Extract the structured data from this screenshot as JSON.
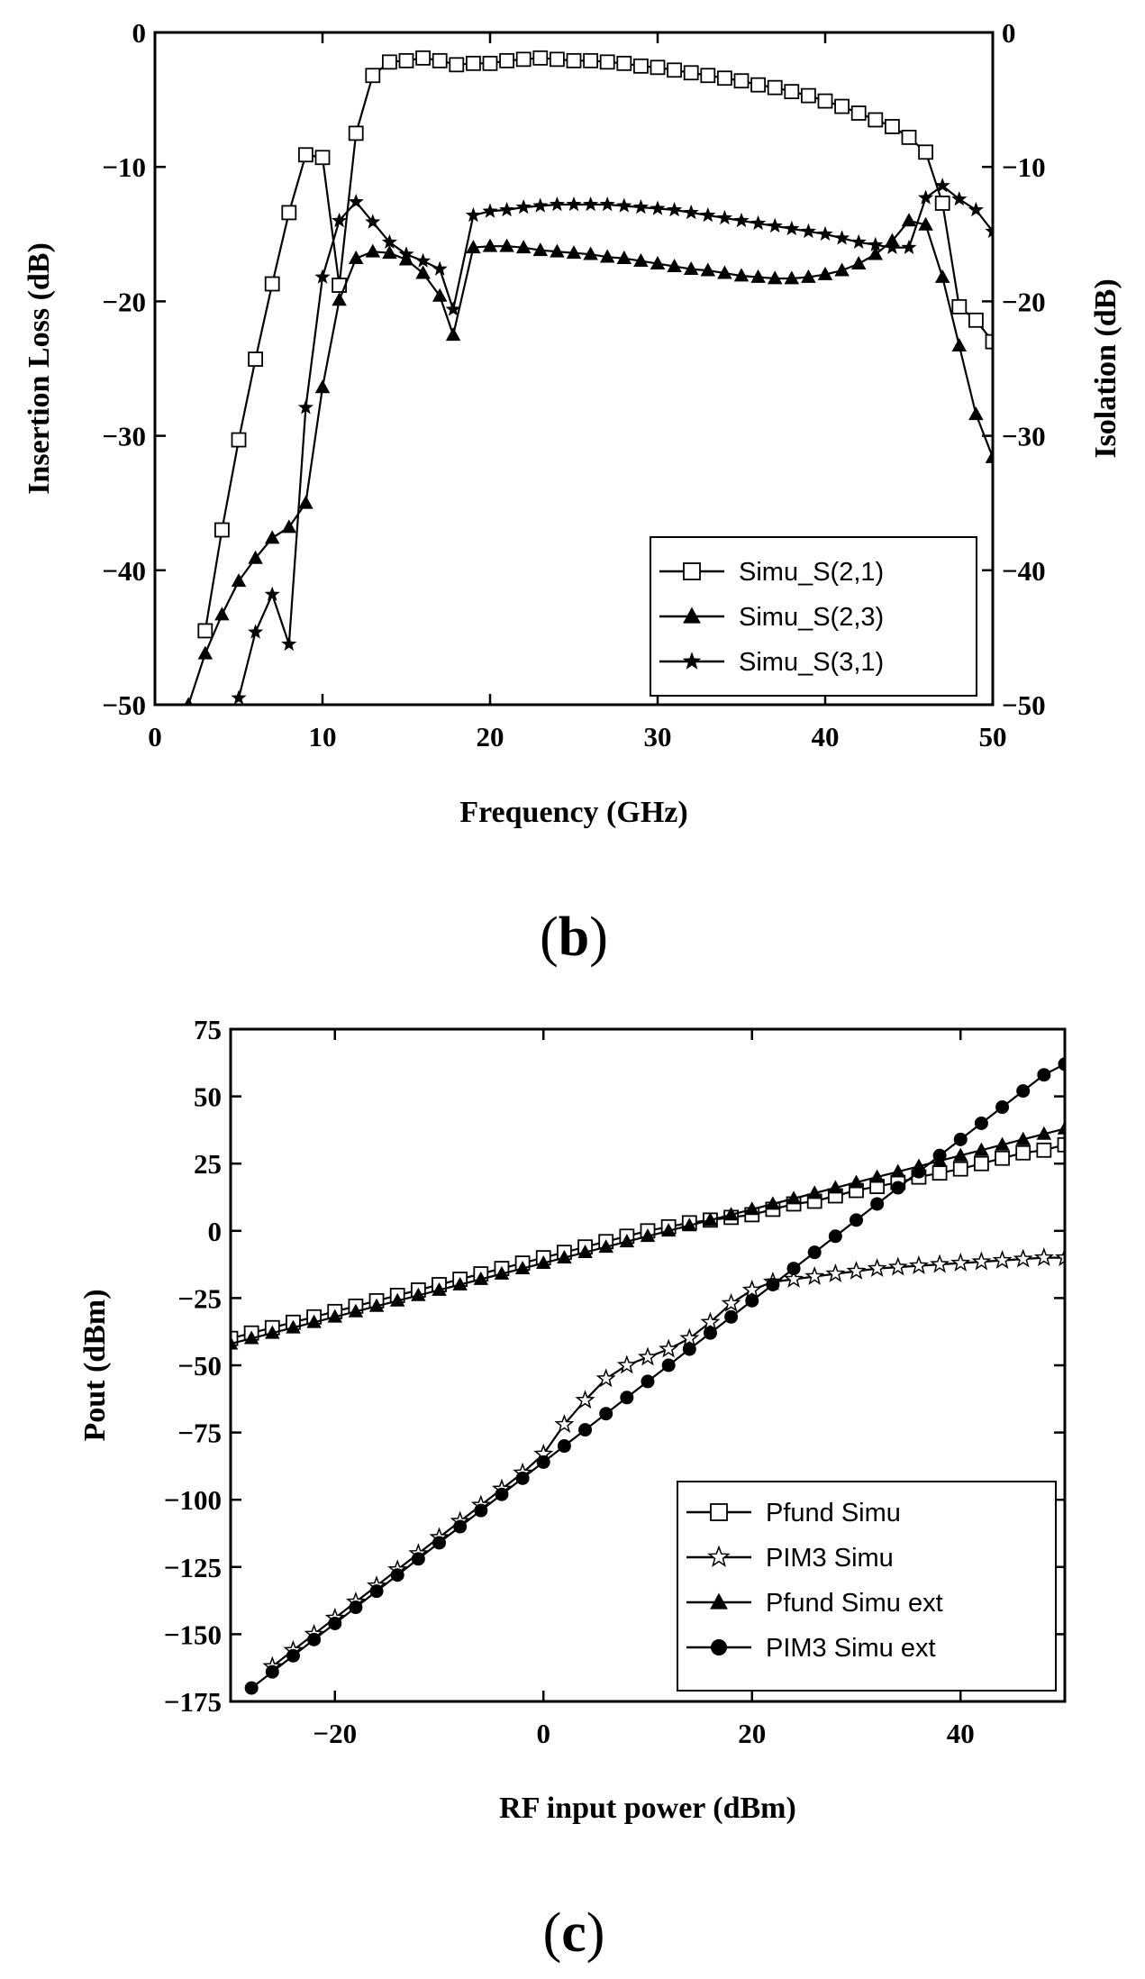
{
  "chart_data": [
    {
      "id": "b",
      "panel_label": {
        "open": "(",
        "letter": "b",
        "close": ")"
      },
      "type": "line",
      "xlabel": "Frequency (GHz)",
      "ylabel": "Insertion Loss (dB)",
      "y2label": "Isolation (dB)",
      "xlim": [
        0,
        50
      ],
      "ylim": [
        -50,
        0
      ],
      "xticks": [
        0,
        10,
        20,
        30,
        40,
        50
      ],
      "yticks": [
        0,
        -10,
        -20,
        -30,
        -40,
        -50
      ],
      "ytick_labels": [
        "0",
        "−10",
        "−20",
        "−30",
        "−40",
        "−50"
      ],
      "y2ticks": [
        0,
        -10,
        -20,
        -30,
        -40,
        -50
      ],
      "y2tick_labels": [
        "0",
        "−10",
        "−20",
        "−30",
        "−40",
        "−50"
      ],
      "legend_position": "bottom-right",
      "series": [
        {
          "name": "Simu_S(2,1)",
          "marker": "square-open",
          "x": [
            3,
            4,
            5,
            6,
            7,
            8,
            9,
            10,
            11,
            12,
            13,
            14,
            15,
            16,
            17,
            18,
            19,
            20,
            21,
            22,
            23,
            24,
            25,
            26,
            27,
            28,
            29,
            30,
            31,
            32,
            33,
            34,
            35,
            36,
            37,
            38,
            39,
            40,
            41,
            42,
            43,
            44,
            45,
            46,
            47,
            48,
            49,
            50
          ],
          "y": [
            -44.5,
            -37,
            -30.3,
            -24.3,
            -18.7,
            -13.4,
            -9.1,
            -9.3,
            -18.8,
            -7.5,
            -3.2,
            -2.2,
            -2.1,
            -1.9,
            -2.1,
            -2.4,
            -2.3,
            -2.3,
            -2.1,
            -2.0,
            -1.9,
            -2.0,
            -2.1,
            -2.1,
            -2.2,
            -2.3,
            -2.5,
            -2.6,
            -2.8,
            -3.0,
            -3.2,
            -3.4,
            -3.6,
            -3.9,
            -4.1,
            -4.4,
            -4.7,
            -5.1,
            -5.5,
            -6.0,
            -6.5,
            -7.0,
            -7.8,
            -8.9,
            -12.7,
            -20.4,
            -21.4,
            -23.0
          ]
        },
        {
          "name": "Simu_S(2,3)",
          "marker": "triangle-filled",
          "x": [
            2,
            3,
            4,
            5,
            6,
            7,
            8,
            9,
            10,
            11,
            12,
            13,
            14,
            15,
            16,
            17,
            17.8,
            19,
            20,
            21,
            22,
            23,
            24,
            25,
            26,
            27,
            28,
            29,
            30,
            31,
            32,
            33,
            34,
            35,
            36,
            37,
            38,
            39,
            40,
            41,
            42,
            43,
            44,
            45,
            46,
            47,
            48,
            49,
            50
          ],
          "y": [
            -50,
            -46.2,
            -43.3,
            -40.8,
            -39.1,
            -37.6,
            -36.8,
            -35.0,
            -26.4,
            -19.9,
            -16.8,
            -16.3,
            -16.4,
            -16.9,
            -17.9,
            -19.6,
            -22.5,
            -16.0,
            -15.9,
            -15.9,
            -16.0,
            -16.2,
            -16.3,
            -16.4,
            -16.5,
            -16.7,
            -16.8,
            -17.0,
            -17.2,
            -17.4,
            -17.6,
            -17.7,
            -17.9,
            -18.1,
            -18.2,
            -18.3,
            -18.3,
            -18.2,
            -18.0,
            -17.7,
            -17.2,
            -16.5,
            -15.5,
            -14.0,
            -14.3,
            -18.2,
            -23.3,
            -28.4,
            -31.6
          ]
        },
        {
          "name": "Simu_S(3,1)",
          "marker": "star-filled",
          "x": [
            5,
            6,
            7,
            8,
            9,
            10,
            11,
            12,
            13,
            14,
            15,
            16,
            17,
            17.8,
            19,
            20,
            21,
            22,
            23,
            24,
            25,
            26,
            27,
            28,
            29,
            30,
            31,
            32,
            33,
            34,
            35,
            36,
            37,
            38,
            39,
            40,
            41,
            42,
            43,
            44,
            45,
            46,
            47,
            48,
            49,
            50
          ],
          "y": [
            -49.5,
            -44.6,
            -41.8,
            -45.5,
            -27.9,
            -18.2,
            -14.0,
            -12.6,
            -14.1,
            -15.6,
            -16.5,
            -17.0,
            -17.6,
            -20.6,
            -13.6,
            -13.3,
            -13.2,
            -13.0,
            -12.9,
            -12.8,
            -12.8,
            -12.8,
            -12.8,
            -12.9,
            -13.0,
            -13.1,
            -13.2,
            -13.4,
            -13.6,
            -13.8,
            -14.0,
            -14.2,
            -14.4,
            -14.6,
            -14.8,
            -15.0,
            -15.3,
            -15.6,
            -15.8,
            -16.0,
            -16.0,
            -12.3,
            -11.4,
            -12.4,
            -13.2,
            -14.8
          ]
        }
      ]
    },
    {
      "id": "c",
      "panel_label": {
        "open": "(",
        "letter": "c",
        "close": ")"
      },
      "type": "line",
      "xlabel": "RF input power (dBm)",
      "ylabel": "Pout (dBm)",
      "xlim": [
        -30,
        50
      ],
      "ylim": [
        -175,
        75
      ],
      "xticks": [
        -20,
        0,
        20,
        40
      ],
      "xtick_labels": [
        "−20",
        "0",
        "20",
        "40"
      ],
      "yticks": [
        75,
        50,
        25,
        0,
        -25,
        -50,
        -75,
        -100,
        -125,
        -150,
        -175
      ],
      "ytick_labels": [
        "75",
        "50",
        "25",
        "0",
        "−25",
        "−50",
        "−75",
        "−100",
        "−125",
        "−150",
        "−175"
      ],
      "legend_position": "bottom-right",
      "series": [
        {
          "name": "Pfund Simu",
          "marker": "square-open",
          "x": [
            -30,
            -28,
            -26,
            -24,
            -22,
            -20,
            -18,
            -16,
            -14,
            -12,
            -10,
            -8,
            -6,
            -4,
            -2,
            0,
            2,
            4,
            6,
            8,
            10,
            12,
            14,
            16,
            18,
            20,
            22,
            24,
            26,
            28,
            30,
            32,
            34,
            36,
            38,
            40,
            42,
            44,
            46,
            48,
            50
          ],
          "y": [
            -40,
            -38,
            -36,
            -34,
            -32,
            -30,
            -28,
            -26,
            -24,
            -22,
            -20,
            -18,
            -16,
            -14,
            -12,
            -10,
            -8,
            -6,
            -4,
            -2,
            0,
            1.5,
            3,
            4,
            5,
            6,
            8,
            10,
            11,
            13,
            15,
            16.5,
            18,
            20,
            21.5,
            23,
            25,
            27,
            29,
            30,
            32
          ]
        },
        {
          "name": "PIM3 Simu",
          "marker": "star-open",
          "x": [
            -26,
            -24,
            -22,
            -20,
            -18,
            -16,
            -14,
            -12,
            -10,
            -8,
            -6,
            -4,
            -2,
            0,
            2,
            4,
            6,
            8,
            10,
            12,
            14,
            16,
            18,
            20,
            22,
            24,
            26,
            28,
            30,
            32,
            34,
            36,
            38,
            40,
            42,
            44,
            46,
            48,
            50
          ],
          "y": [
            -162,
            -156,
            -150,
            -144,
            -138,
            -132,
            -126,
            -120,
            -114,
            -108,
            -102,
            -96,
            -90,
            -83,
            -72,
            -63,
            -55,
            -50,
            -47,
            -44,
            -40,
            -34,
            -27,
            -22,
            -19,
            -18,
            -17,
            -16,
            -15,
            -14,
            -13.5,
            -13,
            -12.5,
            -12,
            -11.5,
            -11,
            -10.5,
            -10,
            -10
          ]
        },
        {
          "name": "Pfund Simu ext",
          "marker": "triangle-filled",
          "x": [
            -30,
            -28,
            -26,
            -24,
            -22,
            -20,
            -18,
            -16,
            -14,
            -12,
            -10,
            -8,
            -6,
            -4,
            -2,
            0,
            2,
            4,
            6,
            8,
            10,
            12,
            14,
            16,
            18,
            20,
            22,
            24,
            26,
            28,
            30,
            32,
            34,
            36,
            38,
            40,
            42,
            44,
            46,
            48,
            50
          ],
          "y": [
            -42,
            -40,
            -38,
            -36,
            -34,
            -32,
            -30,
            -28,
            -26,
            -24,
            -22,
            -20,
            -18,
            -16,
            -14,
            -12,
            -10,
            -8,
            -6,
            -4,
            -2,
            0,
            2,
            4,
            6,
            8,
            10,
            12,
            14,
            16,
            18,
            20,
            22,
            24,
            26,
            28,
            30,
            32,
            34,
            36,
            38
          ]
        },
        {
          "name": "PIM3 Simu ext",
          "marker": "circle-filled",
          "x": [
            -28,
            -26,
            -24,
            -22,
            -20,
            -18,
            -16,
            -14,
            -12,
            -10,
            -8,
            -6,
            -4,
            -2,
            0,
            2,
            4,
            6,
            8,
            10,
            12,
            14,
            16,
            18,
            20,
            22,
            24,
            26,
            28,
            30,
            32,
            34,
            36,
            38,
            40,
            42,
            44,
            46,
            48,
            50
          ],
          "y": [
            -170,
            -164,
            -158,
            -152,
            -146,
            -140,
            -134,
            -128,
            -122,
            -116,
            -110,
            -104,
            -98,
            -92,
            -86,
            -80,
            -74,
            -68,
            -62,
            -56,
            -50,
            -44,
            -38,
            -32,
            -26,
            -20,
            -14,
            -8,
            -2,
            4,
            10,
            16,
            22,
            28,
            34,
            40,
            46,
            52,
            58,
            62
          ]
        }
      ]
    }
  ]
}
